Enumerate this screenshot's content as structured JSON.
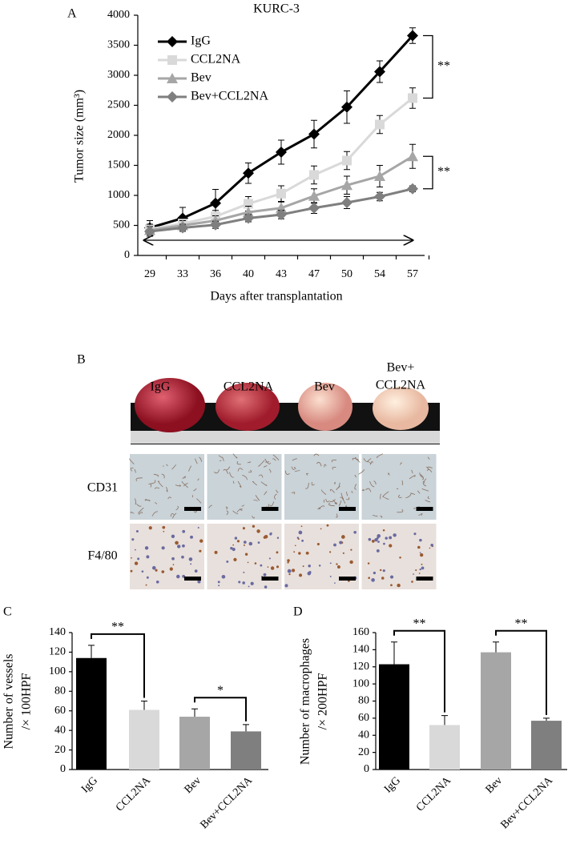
{
  "chart_data": [
    {
      "type": "line",
      "panel": "A",
      "title": "KURC-3",
      "xlabel": "Days after transplantation",
      "ylabel": "Tumor size (mm³)",
      "categories": [
        "29",
        "33",
        "36",
        "40",
        "43",
        "47",
        "50",
        "54",
        "57"
      ],
      "ylim": [
        0,
        4000
      ],
      "yticks": [
        0,
        500,
        1000,
        1500,
        2000,
        2500,
        3000,
        3500,
        4000
      ],
      "series": [
        {
          "name": "IgG",
          "color": "#000000",
          "marker": "diamond",
          "values": [
            460,
            620,
            870,
            1370,
            1720,
            2020,
            2470,
            3060,
            3660
          ],
          "errors": [
            120,
            180,
            230,
            170,
            200,
            230,
            270,
            180,
            130
          ]
        },
        {
          "name": "CCL2NA",
          "color": "#d9d9d9",
          "marker": "square",
          "values": [
            440,
            530,
            650,
            860,
            1030,
            1340,
            1580,
            2180,
            2620
          ],
          "errors": [
            80,
            90,
            100,
            120,
            130,
            150,
            150,
            150,
            170
          ]
        },
        {
          "name": "Bev",
          "color": "#a6a6a6",
          "marker": "triangle",
          "values": [
            420,
            500,
            580,
            720,
            790,
            990,
            1170,
            1320,
            1650
          ],
          "errors": [
            100,
            80,
            80,
            100,
            100,
            120,
            150,
            180,
            200
          ]
        },
        {
          "name": "Bev+CCL2NA",
          "color": "#7f7f7f",
          "marker": "diamond",
          "values": [
            400,
            460,
            510,
            620,
            680,
            790,
            880,
            980,
            1110
          ],
          "errors": [
            80,
            60,
            60,
            60,
            70,
            90,
            100,
            70,
            50
          ]
        }
      ],
      "annotations": [
        "**",
        "**"
      ]
    },
    {
      "type": "bar",
      "panel": "C",
      "ylabel": [
        "Number of vessels",
        "/× 100HPF"
      ],
      "categories": [
        "IgG",
        "CCL2NA",
        "Bev",
        "Bev+CCL2NA"
      ],
      "values": [
        114,
        61,
        54,
        39
      ],
      "errors": [
        13,
        9,
        8,
        7
      ],
      "colors": [
        "#000000",
        "#d9d9d9",
        "#a6a6a6",
        "#7f7f7f"
      ],
      "ylim": [
        0,
        140
      ],
      "yticks": [
        0,
        20,
        40,
        60,
        80,
        100,
        120,
        140
      ],
      "annotations": [
        "**",
        "*"
      ]
    },
    {
      "type": "bar",
      "panel": "D",
      "ylabel": [
        "Number of macrophages",
        "/× 200HPF"
      ],
      "categories": [
        "IgG",
        "CCL2NA",
        "Bev",
        "Bev+CCL2NA"
      ],
      "values": [
        123,
        52,
        137,
        57
      ],
      "errors": [
        26,
        11,
        12,
        3
      ],
      "colors": [
        "#000000",
        "#d9d9d9",
        "#a6a6a6",
        "#7f7f7f"
      ],
      "ylim": [
        0,
        160
      ],
      "yticks": [
        0,
        20,
        40,
        60,
        80,
        100,
        120,
        140,
        160
      ],
      "annotations": [
        "**",
        "**"
      ]
    }
  ],
  "panel_b": {
    "label": "B",
    "columns": [
      "IgG",
      "CCL2NA",
      "Bev",
      [
        "Bev+",
        "CCL2NA"
      ]
    ],
    "rows": [
      "CD31",
      "F4/80"
    ]
  }
}
